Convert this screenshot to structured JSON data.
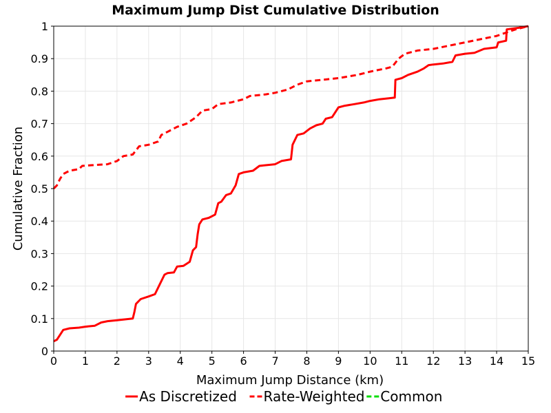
{
  "chart_data": {
    "type": "line",
    "title": "Maximum Jump Dist Cumulative Distribution",
    "xlabel": "Maximum Jump Distance (km)",
    "ylabel": "Cumulative Fraction",
    "xlim": [
      0,
      15
    ],
    "ylim": [
      0,
      1
    ],
    "x_ticks": [
      "0",
      "1",
      "2",
      "3",
      "4",
      "5",
      "6",
      "7",
      "8",
      "9",
      "10",
      "11",
      "12",
      "13",
      "14",
      "15"
    ],
    "y_ticks": [
      "0",
      "0.1",
      "0.2",
      "0.3",
      "0.4",
      "0.5",
      "0.6",
      "0.7",
      "0.8",
      "0.9",
      "1"
    ],
    "grid": true,
    "legend_position": "bottom",
    "series": [
      {
        "name": "As Discretized",
        "color": "#ff0000",
        "style": "solid",
        "points": [
          [
            0,
            0.03
          ],
          [
            0.1,
            0.035
          ],
          [
            0.2,
            0.05
          ],
          [
            0.3,
            0.065
          ],
          [
            0.5,
            0.07
          ],
          [
            0.8,
            0.072
          ],
          [
            1.0,
            0.075
          ],
          [
            1.3,
            0.078
          ],
          [
            1.5,
            0.088
          ],
          [
            1.7,
            0.092
          ],
          [
            2.0,
            0.095
          ],
          [
            2.3,
            0.098
          ],
          [
            2.5,
            0.1
          ],
          [
            2.55,
            0.12
          ],
          [
            2.6,
            0.145
          ],
          [
            2.75,
            0.16
          ],
          [
            3.0,
            0.168
          ],
          [
            3.2,
            0.175
          ],
          [
            3.35,
            0.205
          ],
          [
            3.5,
            0.235
          ],
          [
            3.6,
            0.24
          ],
          [
            3.8,
            0.242
          ],
          [
            3.9,
            0.26
          ],
          [
            4.1,
            0.262
          ],
          [
            4.3,
            0.275
          ],
          [
            4.4,
            0.31
          ],
          [
            4.5,
            0.32
          ],
          [
            4.55,
            0.36
          ],
          [
            4.6,
            0.39
          ],
          [
            4.7,
            0.405
          ],
          [
            4.9,
            0.41
          ],
          [
            5.1,
            0.42
          ],
          [
            5.2,
            0.455
          ],
          [
            5.3,
            0.46
          ],
          [
            5.45,
            0.48
          ],
          [
            5.6,
            0.485
          ],
          [
            5.75,
            0.51
          ],
          [
            5.85,
            0.545
          ],
          [
            6.0,
            0.55
          ],
          [
            6.3,
            0.555
          ],
          [
            6.5,
            0.57
          ],
          [
            7.0,
            0.575
          ],
          [
            7.2,
            0.585
          ],
          [
            7.5,
            0.59
          ],
          [
            7.55,
            0.635
          ],
          [
            7.7,
            0.665
          ],
          [
            7.9,
            0.67
          ],
          [
            8.1,
            0.685
          ],
          [
            8.3,
            0.695
          ],
          [
            8.5,
            0.7
          ],
          [
            8.6,
            0.715
          ],
          [
            8.8,
            0.72
          ],
          [
            9.0,
            0.75
          ],
          [
            9.2,
            0.755
          ],
          [
            9.5,
            0.76
          ],
          [
            9.8,
            0.765
          ],
          [
            10.0,
            0.77
          ],
          [
            10.3,
            0.775
          ],
          [
            10.6,
            0.778
          ],
          [
            10.78,
            0.78
          ],
          [
            10.8,
            0.835
          ],
          [
            11.0,
            0.84
          ],
          [
            11.2,
            0.85
          ],
          [
            11.5,
            0.86
          ],
          [
            11.7,
            0.87
          ],
          [
            11.85,
            0.88
          ],
          [
            12.0,
            0.882
          ],
          [
            12.3,
            0.885
          ],
          [
            12.6,
            0.89
          ],
          [
            12.7,
            0.91
          ],
          [
            13.0,
            0.915
          ],
          [
            13.3,
            0.918
          ],
          [
            13.6,
            0.93
          ],
          [
            14.0,
            0.935
          ],
          [
            14.05,
            0.95
          ],
          [
            14.3,
            0.955
          ],
          [
            14.32,
            0.99
          ],
          [
            14.7,
            0.995
          ],
          [
            15.0,
            1.0
          ]
        ]
      },
      {
        "name": "Rate-Weighted",
        "color": "#ff0000",
        "style": "dashed",
        "points": [
          [
            0,
            0.5
          ],
          [
            0.1,
            0.51
          ],
          [
            0.2,
            0.53
          ],
          [
            0.3,
            0.545
          ],
          [
            0.5,
            0.555
          ],
          [
            0.8,
            0.56
          ],
          [
            0.9,
            0.57
          ],
          [
            1.2,
            0.572
          ],
          [
            1.7,
            0.575
          ],
          [
            2.0,
            0.585
          ],
          [
            2.2,
            0.6
          ],
          [
            2.5,
            0.605
          ],
          [
            2.7,
            0.63
          ],
          [
            3.0,
            0.635
          ],
          [
            3.3,
            0.645
          ],
          [
            3.4,
            0.665
          ],
          [
            3.6,
            0.675
          ],
          [
            3.9,
            0.69
          ],
          [
            4.2,
            0.7
          ],
          [
            4.5,
            0.72
          ],
          [
            4.7,
            0.74
          ],
          [
            5.0,
            0.745
          ],
          [
            5.2,
            0.76
          ],
          [
            5.6,
            0.765
          ],
          [
            6.0,
            0.775
          ],
          [
            6.2,
            0.785
          ],
          [
            6.7,
            0.79
          ],
          [
            7.0,
            0.795
          ],
          [
            7.4,
            0.805
          ],
          [
            7.7,
            0.82
          ],
          [
            8.0,
            0.83
          ],
          [
            8.5,
            0.835
          ],
          [
            9.0,
            0.84
          ],
          [
            9.6,
            0.85
          ],
          [
            10.0,
            0.86
          ],
          [
            10.5,
            0.87
          ],
          [
            10.7,
            0.875
          ],
          [
            10.9,
            0.9
          ],
          [
            11.1,
            0.915
          ],
          [
            11.3,
            0.92
          ],
          [
            11.5,
            0.925
          ],
          [
            12.0,
            0.93
          ],
          [
            12.5,
            0.94
          ],
          [
            13.0,
            0.95
          ],
          [
            13.5,
            0.96
          ],
          [
            14.0,
            0.97
          ],
          [
            14.3,
            0.98
          ],
          [
            14.6,
            0.99
          ],
          [
            15.0,
            1.0
          ]
        ]
      },
      {
        "name": "Common",
        "color": "#00dd00",
        "style": "dashed",
        "points": []
      }
    ]
  }
}
